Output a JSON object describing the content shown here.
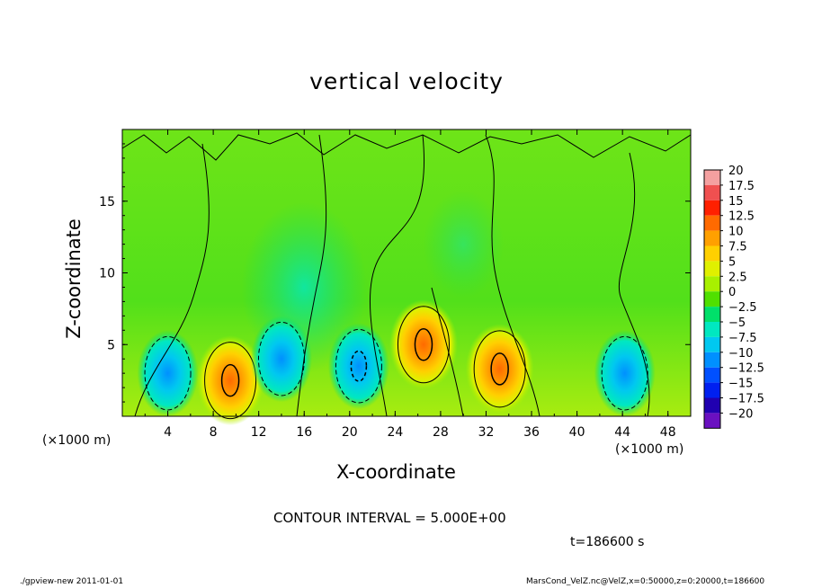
{
  "chart_data": {
    "type": "heatmap",
    "title": "vertical velocity",
    "xlabel": "X-coordinate",
    "ylabel": "Z-coordinate",
    "x_unit_label": "(×1000 m)",
    "xlim": [
      0,
      50
    ],
    "ylim": [
      0,
      20
    ],
    "x_ticks": [
      "4",
      "8",
      "12",
      "16",
      "20",
      "24",
      "28",
      "32",
      "36",
      "40",
      "44",
      "48"
    ],
    "y_ticks": [
      "5",
      "10",
      "15"
    ],
    "colorbar": {
      "labels": [
        "20",
        "17.5",
        "15",
        "12.5",
        "10",
        "7.5",
        "5",
        "2.5",
        "0",
        "−2.5",
        "−5",
        "−7.5",
        "−10",
        "−12.5",
        "−15",
        "−17.5",
        "−20"
      ],
      "colors": [
        "#f4a0a0",
        "#f05050",
        "#ff2000",
        "#ff6a00",
        "#ffa000",
        "#ffd000",
        "#e0f000",
        "#a8f000",
        "#50e000",
        "#00e06a",
        "#00e8c0",
        "#00c8f0",
        "#0090ff",
        "#0050ff",
        "#0020f0",
        "#2000b0",
        "#6a10c0"
      ]
    },
    "features": [
      {
        "type": "updraft",
        "x": 9.5,
        "z": 2.5,
        "value": 12.5
      },
      {
        "type": "updraft",
        "x": 26.5,
        "z": 5.0,
        "value": 10
      },
      {
        "type": "updraft",
        "x": 33.2,
        "z": 3.3,
        "value": 12.5
      },
      {
        "type": "downdraft",
        "x": 4.0,
        "z": 3.0,
        "value": -7.5
      },
      {
        "type": "downdraft",
        "x": 14.0,
        "z": 4.0,
        "value": -7.5
      },
      {
        "type": "downdraft",
        "x": 20.8,
        "z": 3.5,
        "value": -10
      },
      {
        "type": "downdraft",
        "x": 44.2,
        "z": 3.0,
        "value": -7.5
      }
    ]
  },
  "contour_interval": "CONTOUR INTERVAL = 5.000E+00",
  "time_label": "t=186600 s",
  "footer": {
    "left": "./gpview-new  2011-01-01",
    "right": "MarsCond_VelZ.nc@VelZ,x=0:50000,z=0:20000,t=186600"
  }
}
